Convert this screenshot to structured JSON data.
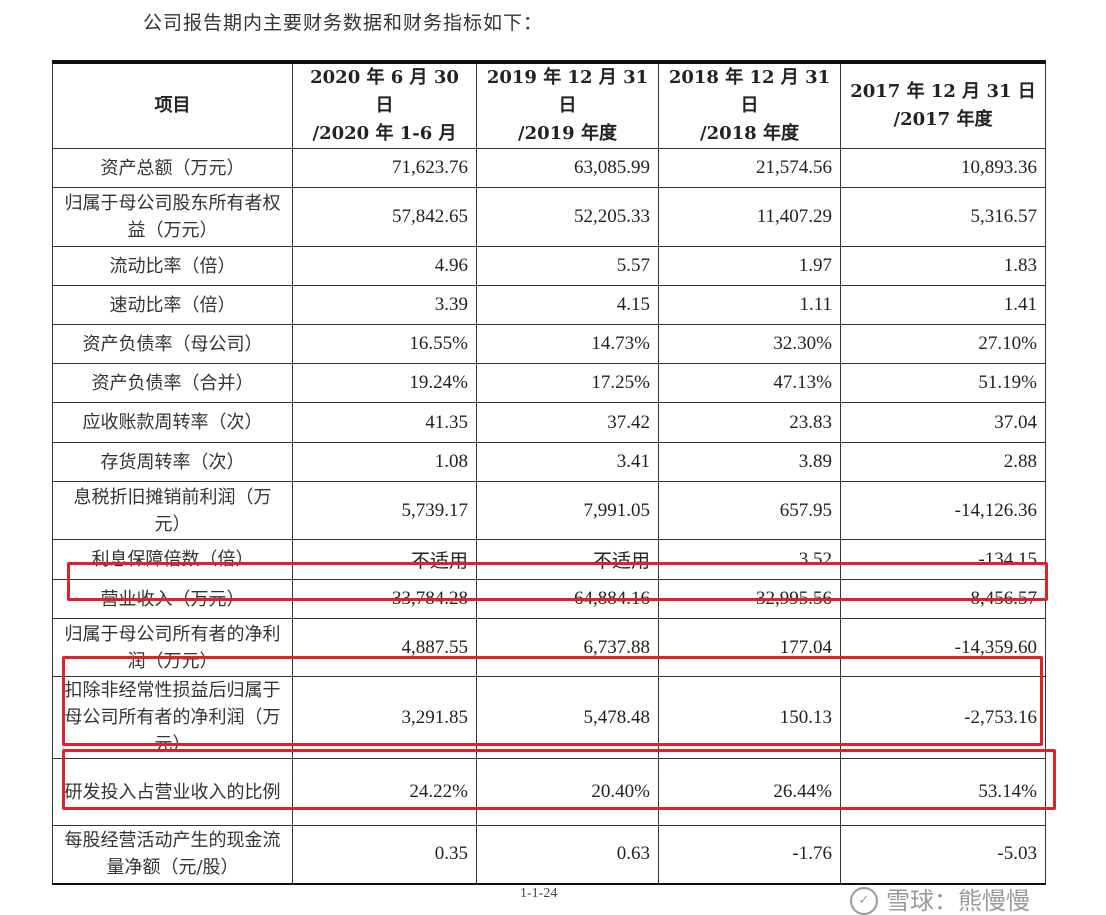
{
  "intro": "公司报告期内主要财务数据和财务指标如下：",
  "headers": [
    "项目",
    "2020 年 6 月 30 日\n/2020 年 1-6 月",
    "2019 年 12 月 31 日\n/2019 年度",
    "2018 年 12 月 31 日\n/2018 年度",
    "2017 年 12 月 31 日\n/2017 年度"
  ],
  "rows": [
    {
      "label": "资产总额（万元）",
      "values": [
        "71,623.76",
        "63,085.99",
        "21,574.56",
        "10,893.36"
      ]
    },
    {
      "label": "归属于母公司股东所有者权益（万元）",
      "values": [
        "57,842.65",
        "52,205.33",
        "11,407.29",
        "5,316.57"
      ]
    },
    {
      "label": "流动比率（倍）",
      "values": [
        "4.96",
        "5.57",
        "1.97",
        "1.83"
      ]
    },
    {
      "label": "速动比率（倍）",
      "values": [
        "3.39",
        "4.15",
        "1.11",
        "1.41"
      ]
    },
    {
      "label": "资产负债率（母公司）",
      "values": [
        "16.55%",
        "14.73%",
        "32.30%",
        "27.10%"
      ]
    },
    {
      "label": "资产负债率（合并）",
      "values": [
        "19.24%",
        "17.25%",
        "47.13%",
        "51.19%"
      ]
    },
    {
      "label": "应收账款周转率（次）",
      "values": [
        "41.35",
        "37.42",
        "23.83",
        "37.04"
      ]
    },
    {
      "label": "存货周转率（次）",
      "values": [
        "1.08",
        "3.41",
        "3.89",
        "2.88"
      ]
    },
    {
      "label": "息税折旧摊销前利润（万元）",
      "values": [
        "5,739.17",
        "7,991.05",
        "657.95",
        "-14,126.36"
      ]
    },
    {
      "label": "利息保障倍数（倍）",
      "values": [
        "不适用",
        "不适用",
        "3.52",
        "-134.15"
      ]
    },
    {
      "label": "营业收入（万元）",
      "values": [
        "33,784.28",
        "64,884.16",
        "32,995.56",
        "8,456.57"
      ]
    },
    {
      "label": "归属于母公司所有者的净利润（万元）",
      "values": [
        "4,887.55",
        "6,737.88",
        "177.04",
        "-14,359.60"
      ]
    },
    {
      "label": "扣除非经常性损益后归属于母公司所有者的净利润（万元）",
      "values": [
        "3,291.85",
        "5,478.48",
        "150.13",
        "-2,753.16"
      ]
    },
    {
      "label": "研发投入占营业收入的比例",
      "values": [
        "24.22%",
        "20.40%",
        "26.44%",
        "53.14%"
      ]
    },
    {
      "label": "每股经营活动产生的现金流量净额（元/股）",
      "values": [
        "0.35",
        "0.63",
        "-1.76",
        "-5.03"
      ]
    }
  ],
  "page_number": "1-1-24",
  "watermark": "雪球：熊慢慢",
  "highlight_color": "#e0202a"
}
